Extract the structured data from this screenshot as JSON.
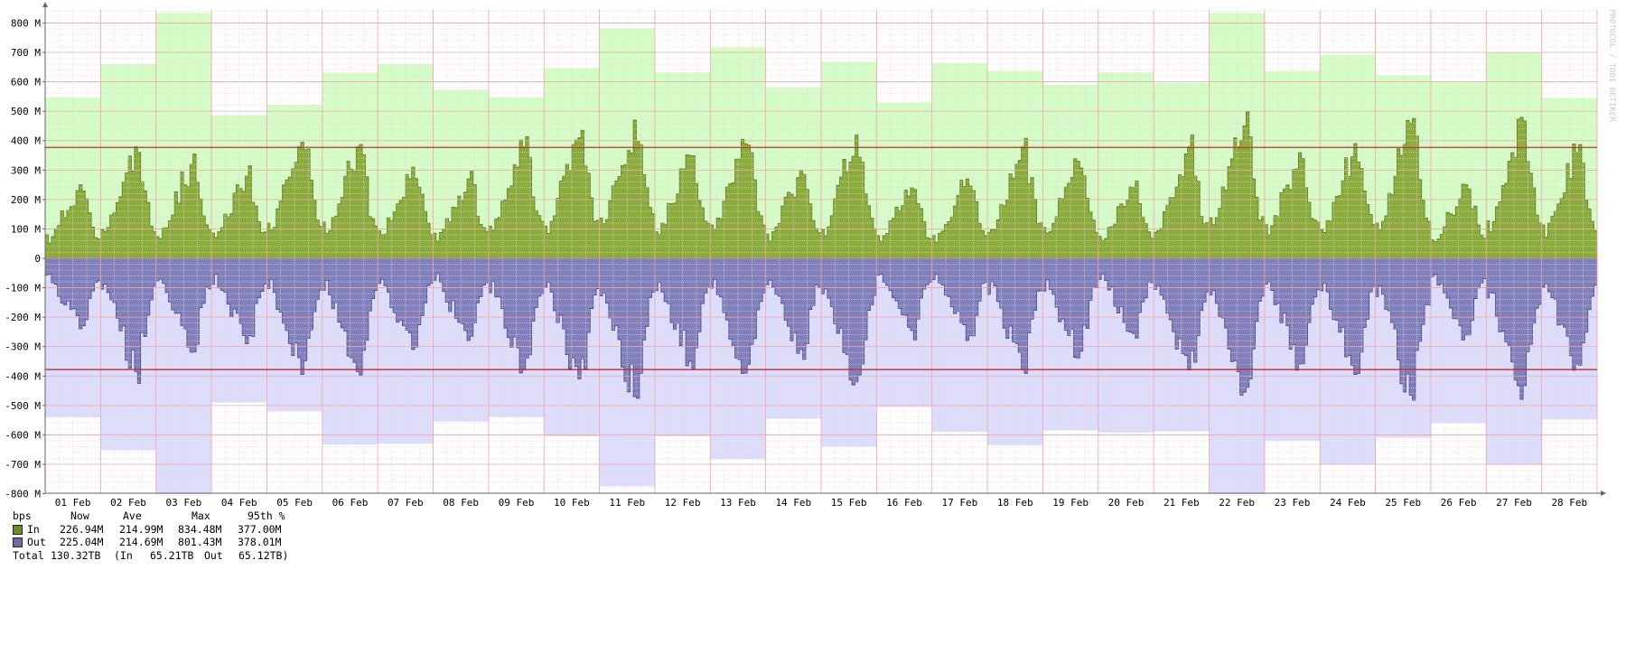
{
  "chart_data": {
    "type": "area",
    "title": "",
    "xlabel": "",
    "ylabel": "bps",
    "vertical_label": "PROTOCOL / TOBI OETIKER",
    "ylim": [
      -800,
      850
    ],
    "y_unit": "M",
    "y_ticks": [
      {
        "value": 800,
        "label": "800 M"
      },
      {
        "value": 700,
        "label": "700 M"
      },
      {
        "value": 600,
        "label": "600 M"
      },
      {
        "value": 500,
        "label": "500 M"
      },
      {
        "value": 400,
        "label": "400 M"
      },
      {
        "value": 300,
        "label": "300 M"
      },
      {
        "value": 200,
        "label": "200 M"
      },
      {
        "value": 100,
        "label": "100 M"
      },
      {
        "value": 0,
        "label": "0"
      },
      {
        "value": -100,
        "label": "-100 M"
      },
      {
        "value": -200,
        "label": "-200 M"
      },
      {
        "value": -300,
        "label": "-300 M"
      },
      {
        "value": -400,
        "label": "-400 M"
      },
      {
        "value": -500,
        "label": "-500 M"
      },
      {
        "value": -600,
        "label": "-600 M"
      },
      {
        "value": -700,
        "label": "-700 M"
      },
      {
        "value": -800,
        "label": "-800 M"
      }
    ],
    "x_ticks": [
      "01 Feb",
      "02 Feb",
      "03 Feb",
      "04 Feb",
      "05 Feb",
      "06 Feb",
      "07 Feb",
      "08 Feb",
      "09 Feb",
      "10 Feb",
      "11 Feb",
      "12 Feb",
      "13 Feb",
      "14 Feb",
      "15 Feb",
      "16 Feb",
      "17 Feb",
      "18 Feb",
      "19 Feb",
      "20 Feb",
      "21 Feb",
      "22 Feb",
      "23 Feb",
      "24 Feb",
      "25 Feb",
      "26 Feb",
      "27 Feb",
      "28 Feb"
    ],
    "grid": true,
    "percentile_95_in": 377,
    "percentile_95_out": 378,
    "series": [
      {
        "name": "In",
        "kind": "daily_max",
        "color": "#d3fcc7",
        "values": [
          548,
          660,
          834,
          487,
          522,
          631,
          660,
          573,
          548,
          647,
          782,
          632,
          717,
          581,
          668,
          530,
          664,
          636,
          590,
          632,
          596,
          834,
          636,
          692,
          622,
          600,
          700,
          545
        ]
      },
      {
        "name": "Out",
        "kind": "daily_max",
        "color": "#dcdcfc",
        "values": [
          540,
          652,
          801,
          490,
          520,
          633,
          630,
          555,
          540,
          605,
          775,
          605,
          683,
          545,
          640,
          505,
          590,
          635,
          585,
          592,
          588,
          801,
          620,
          700,
          610,
          560,
          702,
          548
        ]
      },
      {
        "name": "In",
        "kind": "average",
        "color": "#8aac3c",
        "day_peaks": [
          250,
          380,
          320,
          280,
          395,
          380,
          310,
          270,
          380,
          410,
          470,
          350,
          390,
          300,
          420,
          240,
          270,
          380,
          330,
          240,
          380,
          450,
          360,
          390,
          460,
          250,
          480,
          360
        ]
      },
      {
        "name": "Out",
        "kind": "average",
        "color": "#8080bd",
        "day_peaks": [
          240,
          385,
          320,
          290,
          395,
          385,
          310,
          280,
          380,
          410,
          470,
          350,
          390,
          310,
          420,
          245,
          280,
          380,
          340,
          255,
          380,
          455,
          360,
          395,
          465,
          260,
          480,
          360
        ]
      }
    ]
  },
  "legend": {
    "header": {
      "unit": "bps",
      "now": "Now",
      "ave": "Ave",
      "max": "Max",
      "pct": "95th %"
    },
    "rows": [
      {
        "label": "In",
        "color": "#6b8e23",
        "now": "226.94M",
        "ave": "214.99M",
        "max": "834.48M",
        "pct": "377.00M"
      },
      {
        "label": "Out",
        "color": "#6c6ca8",
        "now": "225.04M",
        "ave": "214.69M",
        "max": "801.43M",
        "pct": "378.01M"
      }
    ],
    "total": {
      "label": "Total",
      "value": "130.32TB",
      "in_label": "(In",
      "in_value": "65.21TB",
      "out_label": "Out",
      "out_value": "65.12TB)"
    }
  }
}
